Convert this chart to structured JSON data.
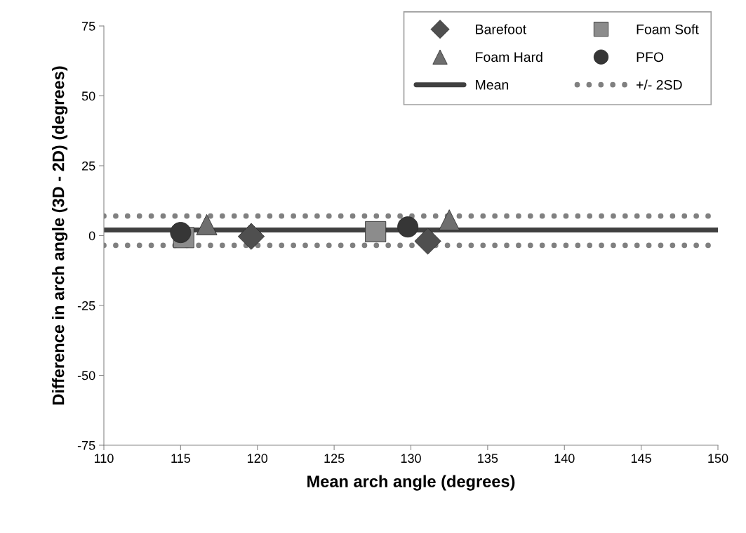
{
  "chart_data": {
    "type": "scatter",
    "xlabel": "Mean arch angle (degrees)",
    "ylabel": "Difference in arch angle (3D - 2D) (degrees)",
    "xlim": [
      110,
      150
    ],
    "xticks": [
      110,
      115,
      120,
      125,
      130,
      135,
      140,
      145,
      150
    ],
    "ylim": [
      -75,
      75
    ],
    "yticks": [
      -75,
      -50,
      -25,
      0,
      25,
      50,
      75
    ],
    "grid": false,
    "legend": "top right",
    "series": [
      {
        "name": "Barefoot",
        "color": "#4f4f4f",
        "marker": "diamond",
        "x": [
          119.6,
          131.1
        ],
        "values": [
          -0.3,
          -2.0
        ]
      },
      {
        "name": "Foam Soft",
        "color": "#8c8c8c",
        "marker": "square",
        "x": [
          115.2,
          127.7
        ],
        "values": [
          -0.7,
          1.4
        ]
      },
      {
        "name": "Foam Hard",
        "color": "#6e6e6e",
        "marker": "triangle",
        "x": [
          116.7,
          132.5
        ],
        "values": [
          3.9,
          5.6
        ]
      },
      {
        "name": "PFO",
        "color": "#363636",
        "marker": "circle",
        "x": [
          115.0,
          129.8
        ],
        "values": [
          1.1,
          3.1
        ]
      },
      {
        "name": "Mean",
        "type": "line",
        "color": "#404040",
        "line_style": "solid",
        "marker": "none",
        "x": [
          110,
          150
        ],
        "values": [
          2,
          2
        ]
      },
      {
        "name": "+/- 2SD",
        "type": "line",
        "color": "#808080",
        "line_style": "dotted",
        "marker": "none",
        "x": [
          110,
          150
        ],
        "values": [
          7,
          7
        ]
      },
      {
        "type": "line",
        "color": "#808080",
        "line_style": "dotted",
        "marker": "none",
        "x": [
          110,
          150
        ],
        "values": [
          -3.5,
          -3.5
        ]
      }
    ]
  }
}
